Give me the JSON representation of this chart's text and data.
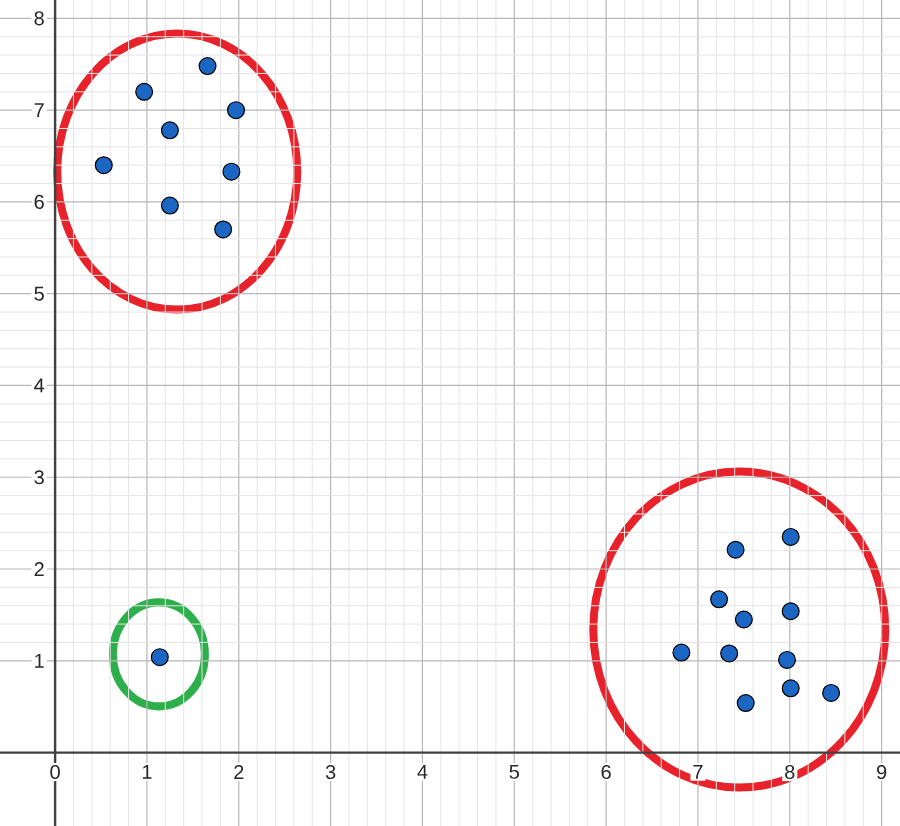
{
  "chart_data": {
    "type": "scatter",
    "xlim": [
      -0.6,
      9.2
    ],
    "ylim": [
      -0.8,
      8.2
    ],
    "xticks": [
      0,
      1,
      2,
      3,
      4,
      5,
      6,
      7,
      8,
      9
    ],
    "yticks": [
      1,
      2,
      3,
      4,
      5,
      6,
      7,
      8
    ],
    "grid": true,
    "marker": "circle",
    "series": [
      {
        "color": "#1a66c2",
        "x": [
          0.53,
          0.97,
          1.66,
          1.97,
          1.25,
          1.92,
          1.25,
          1.83,
          7.41,
          8.01,
          7.23,
          7.5,
          8.01,
          6.82,
          7.34,
          7.97,
          8.01,
          8.45,
          7.52,
          1.14
        ],
        "values": [
          6.4,
          7.2,
          7.48,
          7.0,
          6.78,
          6.33,
          5.96,
          5.7,
          2.21,
          2.35,
          1.67,
          1.45,
          1.54,
          1.09,
          1.08,
          1.01,
          0.7,
          0.65,
          0.54,
          1.04
        ]
      }
    ]
  }
}
